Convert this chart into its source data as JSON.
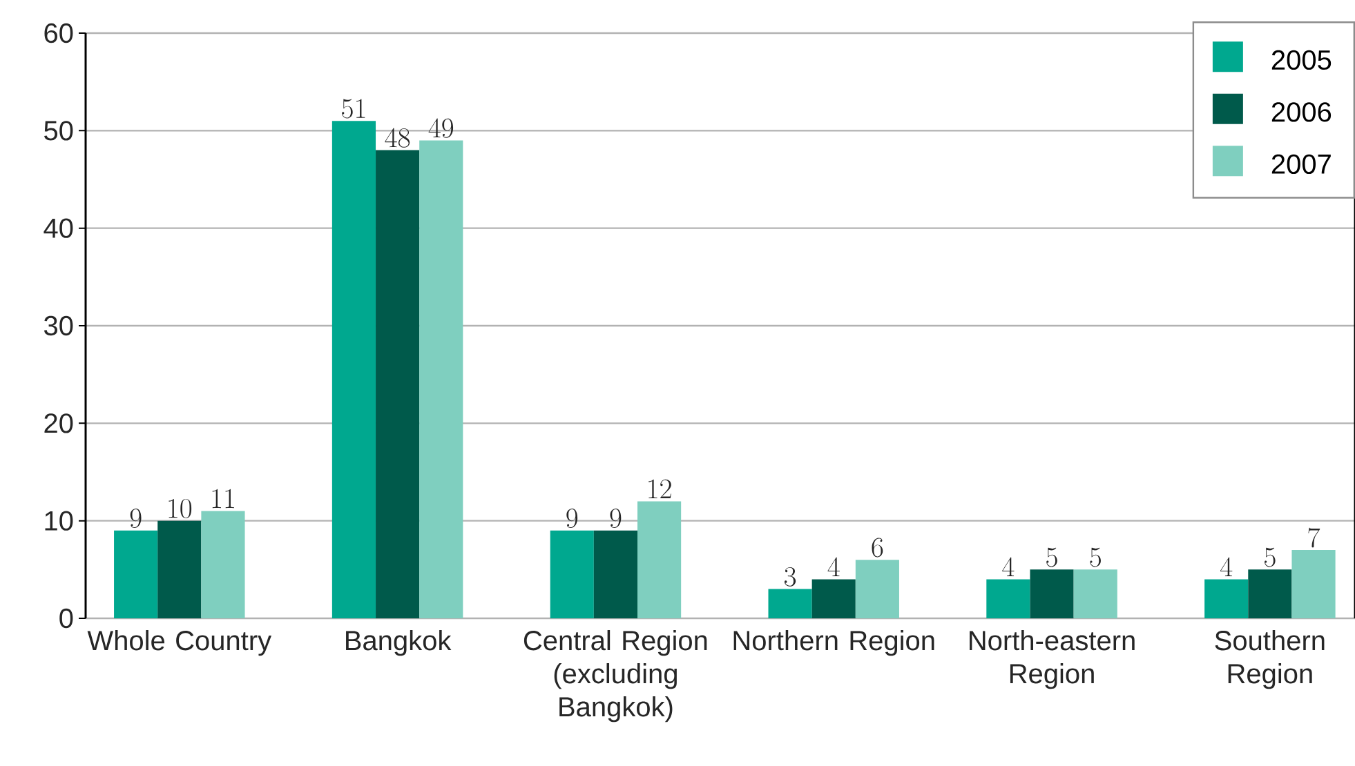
{
  "chart_data": {
    "type": "bar",
    "categories": [
      "Whole Country",
      "Bangkok",
      "Central Region (excluding Bangkok)",
      "Northern Region",
      "North-eastern Region",
      "Southern Region"
    ],
    "series": [
      {
        "name": "2005",
        "color": "#00a88f",
        "values": [
          9,
          51,
          9,
          3,
          4,
          4
        ]
      },
      {
        "name": "2006",
        "color": "#005a4b",
        "values": [
          10,
          48,
          9,
          4,
          5,
          5
        ]
      },
      {
        "name": "2007",
        "color": "#7fcfbf",
        "values": [
          11,
          49,
          12,
          6,
          5,
          7
        ]
      }
    ],
    "ylim": [
      0,
      60
    ],
    "yticks": [
      0,
      10,
      20,
      30,
      40,
      50,
      60
    ],
    "grid": "y",
    "legend": "top right",
    "data_labels": true
  }
}
